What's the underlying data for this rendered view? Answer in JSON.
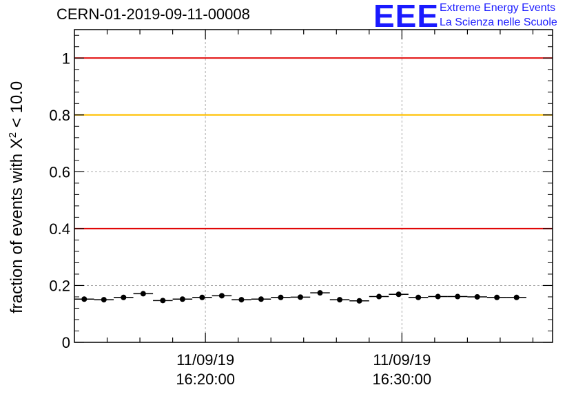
{
  "header": {
    "run_id": "CERN-01-2019-09-11-00008",
    "logo_text": "EEE",
    "logo_line1": "Extreme Energy Events",
    "logo_line2": "La Scienza nelle Scuole"
  },
  "chart_data": {
    "type": "scatter",
    "ylabel_parts": {
      "prefix": "fraction of events with ",
      "symbol": "X",
      "sup": "2",
      "suffix": " < 10.0"
    },
    "ylim": [
      0,
      1.1
    ],
    "yticks": [
      {
        "value": 0,
        "label": "0"
      },
      {
        "value": 0.2,
        "label": "0.2"
      },
      {
        "value": 0.4,
        "label": "0.4"
      },
      {
        "value": 0.6,
        "label": "0.6"
      },
      {
        "value": 0.8,
        "label": "0.8"
      },
      {
        "value": 1,
        "label": "1"
      }
    ],
    "xlim_minutes": [
      0,
      0.365
    ],
    "xticks": [
      {
        "value": 0.1,
        "line1": "11/09/19",
        "line2": "16:20:00"
      },
      {
        "value": 0.25,
        "line1": "11/09/19",
        "line2": "16:30:00"
      }
    ],
    "grid": true,
    "reference_lines": [
      {
        "y": 1.0,
        "color": "#e00000"
      },
      {
        "y": 0.8,
        "color": "#ffc000"
      },
      {
        "y": 0.4,
        "color": "#e00000"
      }
    ],
    "series": [
      {
        "marker_color": "#000000",
        "points": [
          {
            "x": 0.0075,
            "y": 0.152
          },
          {
            "x": 0.0225,
            "y": 0.15
          },
          {
            "x": 0.0375,
            "y": 0.158
          },
          {
            "x": 0.0525,
            "y": 0.171
          },
          {
            "x": 0.0675,
            "y": 0.147
          },
          {
            "x": 0.0825,
            "y": 0.152
          },
          {
            "x": 0.0975,
            "y": 0.158
          },
          {
            "x": 0.1125,
            "y": 0.164
          },
          {
            "x": 0.1275,
            "y": 0.15
          },
          {
            "x": 0.1425,
            "y": 0.152
          },
          {
            "x": 0.1575,
            "y": 0.158
          },
          {
            "x": 0.1725,
            "y": 0.159
          },
          {
            "x": 0.1875,
            "y": 0.174
          },
          {
            "x": 0.2025,
            "y": 0.15
          },
          {
            "x": 0.2175,
            "y": 0.146
          },
          {
            "x": 0.2325,
            "y": 0.161
          },
          {
            "x": 0.2475,
            "y": 0.169
          },
          {
            "x": 0.2625,
            "y": 0.158
          },
          {
            "x": 0.2775,
            "y": 0.161
          },
          {
            "x": 0.2925,
            "y": 0.161
          },
          {
            "x": 0.3075,
            "y": 0.16
          },
          {
            "x": 0.3225,
            "y": 0.158
          },
          {
            "x": 0.3375,
            "y": 0.158
          }
        ]
      }
    ]
  }
}
